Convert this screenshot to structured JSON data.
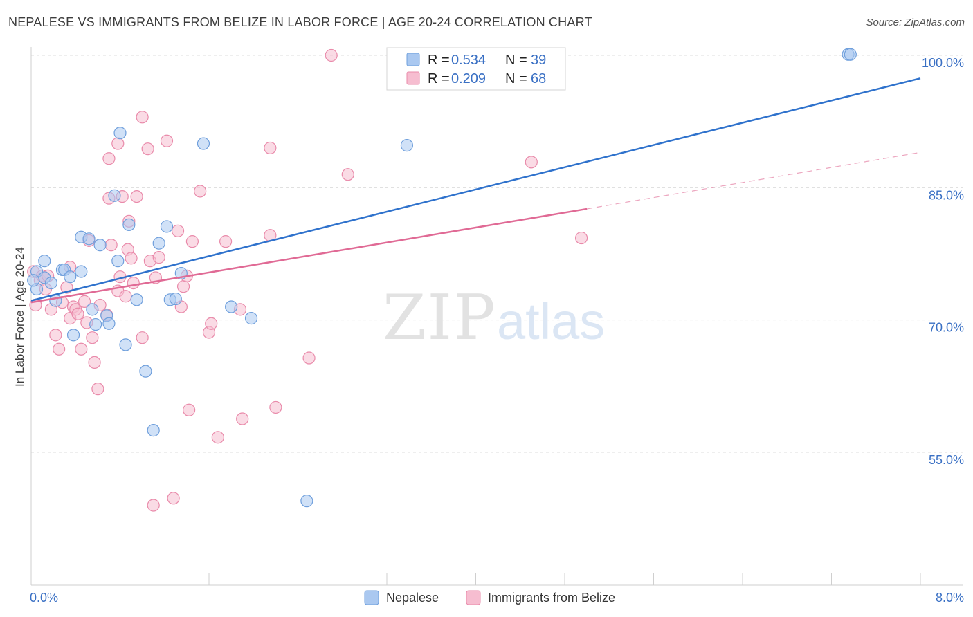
{
  "title": "NEPALESE VS IMMIGRANTS FROM BELIZE IN LABOR FORCE | AGE 20-24 CORRELATION CHART",
  "source": "Source: ZipAtlas.com",
  "watermark": {
    "zip": "ZIP",
    "atlas": "atlas"
  },
  "chart_data": {
    "type": "scatter",
    "title": "NEPALESE VS IMMIGRANTS FROM BELIZE IN LABOR FORCE | AGE 20-24 CORRELATION CHART",
    "xlabel": "",
    "ylabel": "In Labor Force | Age 20-24",
    "xlim": [
      0,
      8
    ],
    "ylim": [
      40,
      101.5
    ],
    "x_tick_labels": [
      {
        "value": 0,
        "label": "0.0%"
      },
      {
        "value": 8,
        "label": "8.0%"
      }
    ],
    "y_tick_labels": [
      {
        "value": 55,
        "label": "55.0%"
      },
      {
        "value": 70,
        "label": "70.0%"
      },
      {
        "value": 85,
        "label": "85.0%"
      },
      {
        "value": 100,
        "label": "100.0%"
      }
    ],
    "legend": [
      {
        "name": "Nepalese",
        "r_label": "R =",
        "r_value": "0.534",
        "n_label": "N =",
        "n_value": "39"
      },
      {
        "name": "Immigrants from Belize",
        "r_label": "R =",
        "r_value": "0.209",
        "n_label": "N =",
        "n_value": "68"
      }
    ],
    "colors": {
      "nepalese_fill": "#aac8f0",
      "nepalese_stroke": "#6f9fdc",
      "nepalese_line": "#2f72cc",
      "belize_fill": "#f6bdd0",
      "belize_stroke": "#e98aaa",
      "belize_line": "#e06a95",
      "axis_label": "#3a70c4",
      "grid": "#dcdcdc"
    },
    "series": [
      {
        "name": "Nepalese",
        "trend": {
          "x0": 0,
          "y0": 72.2,
          "x1": 8,
          "y1": 97.4
        },
        "points": [
          [
            0.05,
            75.5
          ],
          [
            0.05,
            73.5
          ],
          [
            0.12,
            76.7
          ],
          [
            0.12,
            74.8
          ],
          [
            0.18,
            74.2
          ],
          [
            0.22,
            72.2
          ],
          [
            0.28,
            75.7
          ],
          [
            0.3,
            75.7
          ],
          [
            0.35,
            74.9
          ],
          [
            0.38,
            68.3
          ],
          [
            0.45,
            75.5
          ],
          [
            0.45,
            79.4
          ],
          [
            0.52,
            79.2
          ],
          [
            0.55,
            71.2
          ],
          [
            0.58,
            69.5
          ],
          [
            0.62,
            78.5
          ],
          [
            0.68,
            70.5
          ],
          [
            0.7,
            69.6
          ],
          [
            0.75,
            84.1
          ],
          [
            0.78,
            76.7
          ],
          [
            0.8,
            91.2
          ],
          [
            0.85,
            67.2
          ],
          [
            0.88,
            80.8
          ],
          [
            0.95,
            72.3
          ],
          [
            1.03,
            64.2
          ],
          [
            1.1,
            57.5
          ],
          [
            1.15,
            78.7
          ],
          [
            1.22,
            80.6
          ],
          [
            1.25,
            72.3
          ],
          [
            1.3,
            72.4
          ],
          [
            1.35,
            75.3
          ],
          [
            1.55,
            90.0
          ],
          [
            1.8,
            71.5
          ],
          [
            1.98,
            70.2
          ],
          [
            2.48,
            49.5
          ],
          [
            3.38,
            89.8
          ],
          [
            7.35,
            100.1
          ],
          [
            7.37,
            100.1
          ],
          [
            0.02,
            74.5
          ]
        ]
      },
      {
        "name": "Immigrants from Belize",
        "trend": {
          "x0": 0,
          "y0": 72.0,
          "x1": 5.0,
          "y1": 82.6
        },
        "trend_extension": {
          "x0": 5.0,
          "y0": 82.6,
          "x1": 8,
          "y1": 89.0
        },
        "points": [
          [
            0.02,
            75.5
          ],
          [
            0.04,
            71.7
          ],
          [
            0.08,
            74.5
          ],
          [
            0.1,
            75.0
          ],
          [
            0.13,
            73.5
          ],
          [
            0.15,
            75.0
          ],
          [
            0.18,
            71.2
          ],
          [
            0.22,
            68.3
          ],
          [
            0.25,
            66.7
          ],
          [
            0.28,
            72.0
          ],
          [
            0.32,
            73.7
          ],
          [
            0.35,
            76.0
          ],
          [
            0.35,
            70.2
          ],
          [
            0.38,
            71.5
          ],
          [
            0.4,
            71.2
          ],
          [
            0.42,
            70.7
          ],
          [
            0.45,
            66.7
          ],
          [
            0.48,
            72.1
          ],
          [
            0.5,
            69.7
          ],
          [
            0.52,
            79.0
          ],
          [
            0.55,
            68.0
          ],
          [
            0.57,
            65.2
          ],
          [
            0.6,
            62.2
          ],
          [
            0.62,
            71.7
          ],
          [
            0.68,
            70.6
          ],
          [
            0.7,
            83.8
          ],
          [
            0.7,
            88.3
          ],
          [
            0.72,
            78.5
          ],
          [
            0.78,
            73.3
          ],
          [
            0.8,
            74.9
          ],
          [
            0.82,
            84.0
          ],
          [
            0.85,
            72.7
          ],
          [
            0.87,
            78.0
          ],
          [
            0.88,
            81.2
          ],
          [
            0.9,
            77.0
          ],
          [
            0.92,
            74.2
          ],
          [
            0.95,
            84.0
          ],
          [
            1.0,
            93.0
          ],
          [
            1.0,
            68.0
          ],
          [
            1.05,
            89.4
          ],
          [
            1.07,
            76.7
          ],
          [
            1.12,
            74.8
          ],
          [
            1.15,
            77.1
          ],
          [
            1.22,
            90.3
          ],
          [
            1.32,
            80.1
          ],
          [
            1.35,
            71.5
          ],
          [
            1.37,
            73.8
          ],
          [
            1.4,
            75.0
          ],
          [
            1.42,
            59.8
          ],
          [
            1.45,
            78.9
          ],
          [
            1.52,
            84.6
          ],
          [
            1.6,
            68.6
          ],
          [
            1.62,
            69.6
          ],
          [
            1.68,
            56.7
          ],
          [
            1.75,
            78.9
          ],
          [
            1.88,
            71.2
          ],
          [
            1.9,
            58.8
          ],
          [
            2.15,
            89.5
          ],
          [
            2.15,
            79.6
          ],
          [
            2.2,
            60.1
          ],
          [
            2.5,
            65.7
          ],
          [
            2.7,
            100.0
          ],
          [
            2.85,
            86.5
          ],
          [
            4.5,
            87.9
          ],
          [
            4.95,
            79.3
          ],
          [
            1.1,
            49.0
          ],
          [
            1.28,
            49.8
          ],
          [
            0.78,
            90.0
          ]
        ]
      }
    ]
  }
}
